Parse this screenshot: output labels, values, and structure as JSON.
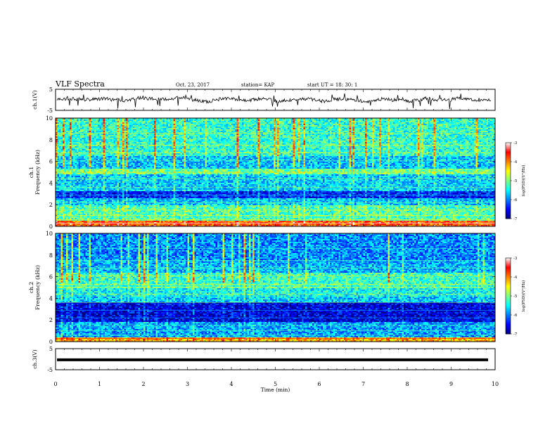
{
  "header": {
    "title": "VLF Spectra",
    "date": "Oct. 23, 2017",
    "station": "station= KAP",
    "start": "start  UT =   18: 30: 1"
  },
  "chart_data": [
    {
      "type": "line",
      "panel": "ch1-waveform",
      "ylabel": "ch.1(V)",
      "y_ticks": [
        "5",
        "-5"
      ],
      "ylim": [
        -5,
        5
      ],
      "xlim": [
        0,
        10
      ],
      "description_values": {
        "baseline": 0.0,
        "noise_amplitude": 1.5
      }
    },
    {
      "type": "heatmap",
      "panel": "ch1-spectrogram",
      "ylabel_top": "ch.1",
      "ylabel": "Frequency (kHz)",
      "y_ticks": [
        "0",
        "2",
        "4",
        "6",
        "8",
        "10"
      ],
      "ylim": [
        0,
        10
      ],
      "xlim": [
        0,
        10
      ],
      "colorbar": {
        "label": "log(PSD)(V²/Hz)",
        "ticks": [
          "-3",
          "-4",
          "-5",
          "-6",
          "-7"
        ],
        "range": [
          -7,
          -3
        ]
      }
    },
    {
      "type": "heatmap",
      "panel": "ch2-spectrogram",
      "ylabel_top": "ch.2",
      "ylabel": "Frequency (kHz)",
      "y_ticks": [
        "0",
        "2",
        "4",
        "6",
        "8",
        "10"
      ],
      "ylim": [
        0,
        10
      ],
      "xlim": [
        0,
        10
      ],
      "colorbar": {
        "label": "log(PSD)(V²/Hz)",
        "ticks": [
          "-3",
          "-4",
          "-5",
          "-6",
          "-7"
        ],
        "range": [
          -7,
          -3
        ]
      }
    },
    {
      "type": "line",
      "panel": "ch3-waveform",
      "ylabel": "ch.3(V)",
      "y_ticks": [
        "5",
        "-5"
      ],
      "ylim": [
        -5,
        5
      ],
      "xlim": [
        0,
        10
      ],
      "constant_value": -0.3
    }
  ],
  "x_axis": {
    "label": "Time  (min)",
    "ticks": [
      "0",
      "1",
      "2",
      "3",
      "4",
      "5",
      "6",
      "7",
      "8",
      "9",
      "10"
    ]
  },
  "colors": {
    "cmap": [
      "#00007a",
      "#0000ff",
      "#007fff",
      "#00ffff",
      "#7fff7f",
      "#ffff00",
      "#ff7f00",
      "#ff0000",
      "#ffffff"
    ]
  }
}
